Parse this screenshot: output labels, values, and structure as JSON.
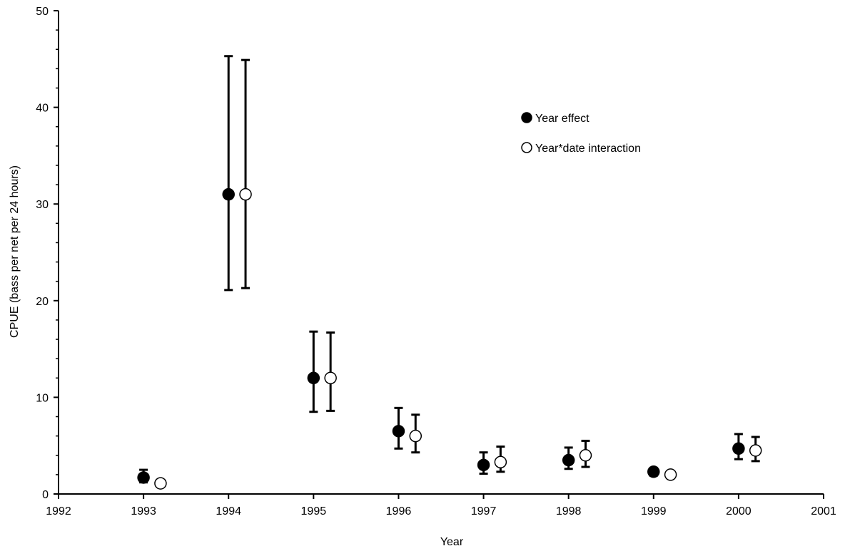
{
  "chart_data": {
    "type": "scatter",
    "title": "",
    "xlabel": "Year",
    "ylabel": "CPUE (bass per net per 24 hours)",
    "xlim": [
      1992,
      2001
    ],
    "ylim": [
      0,
      50
    ],
    "x_ticks": [
      1992,
      1993,
      1994,
      1995,
      1996,
      1997,
      1998,
      1999,
      2000,
      2001
    ],
    "y_ticks": [
      0,
      10,
      20,
      30,
      40,
      50
    ],
    "grid": false,
    "legend_position": "top-right",
    "series": [
      {
        "name": "Year effect",
        "marker": "filled-circle",
        "color": "#000000",
        "offset_years": 0,
        "points": [
          {
            "x": 1993,
            "y": 1.7,
            "low": 1.2,
            "high": 2.5
          },
          {
            "x": 1994,
            "y": 31.0,
            "low": 21.1,
            "high": 45.3
          },
          {
            "x": 1995,
            "y": 12.0,
            "low": 8.5,
            "high": 16.8
          },
          {
            "x": 1996,
            "y": 6.5,
            "low": 4.7,
            "high": 8.9
          },
          {
            "x": 1997,
            "y": 3.0,
            "low": 2.1,
            "high": 4.3
          },
          {
            "x": 1998,
            "y": 3.5,
            "low": 2.6,
            "high": 4.8
          },
          {
            "x": 1999,
            "y": 2.3,
            "low": 1.9,
            "high": 2.7
          },
          {
            "x": 2000,
            "y": 4.7,
            "low": 3.6,
            "high": 6.2
          }
        ]
      },
      {
        "name": "Year*date interaction",
        "marker": "open-circle",
        "color": "#000000",
        "offset_years": 0.2,
        "points": [
          {
            "x": 1993,
            "y": 1.1,
            "low": 0.9,
            "high": 1.4
          },
          {
            "x": 1994,
            "y": 31.0,
            "low": 21.3,
            "high": 44.9
          },
          {
            "x": 1995,
            "y": 12.0,
            "low": 8.6,
            "high": 16.7
          },
          {
            "x": 1996,
            "y": 6.0,
            "low": 4.3,
            "high": 8.2
          },
          {
            "x": 1997,
            "y": 3.3,
            "low": 2.3,
            "high": 4.9
          },
          {
            "x": 1998,
            "y": 4.0,
            "low": 2.8,
            "high": 5.5
          },
          {
            "x": 1999,
            "y": 2.0,
            "low": 1.8,
            "high": 2.2
          },
          {
            "x": 2000,
            "y": 4.5,
            "low": 3.4,
            "high": 5.9
          }
        ]
      }
    ]
  }
}
